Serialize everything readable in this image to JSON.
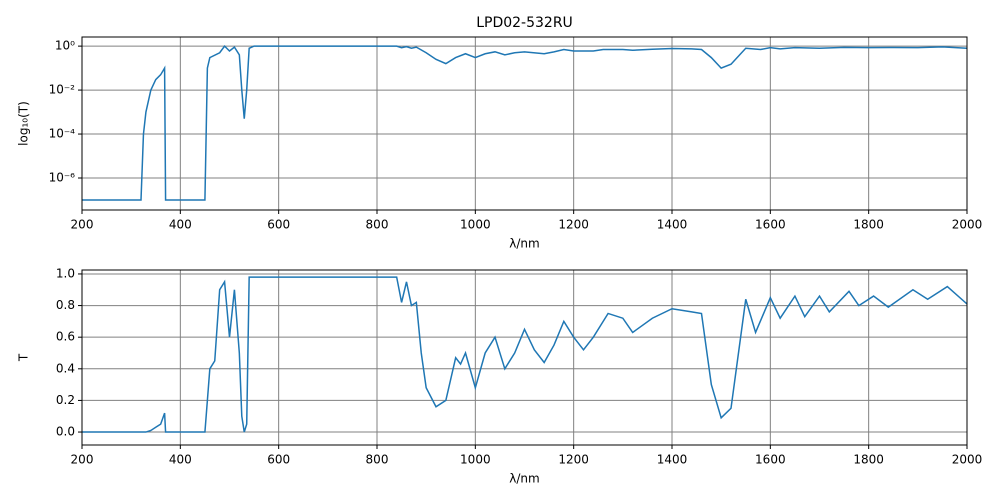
{
  "chart_data": [
    {
      "type": "line",
      "title": "LPD02-532RU",
      "xlabel": "λ/nm",
      "ylabel": "log₁₀(T)",
      "log_y": true,
      "grid": true,
      "xlim": [
        200,
        2000
      ],
      "xticks": [
        200,
        400,
        600,
        800,
        1000,
        1200,
        1400,
        1600,
        1800,
        2000
      ],
      "ylim": [
        3.5e-08,
        2.6
      ],
      "yticks": [
        {
          "value": 1e-06,
          "label": "10⁻⁶"
        },
        {
          "value": 0.0001,
          "label": "10⁻⁴"
        },
        {
          "value": 0.01,
          "label": "10⁻²"
        },
        {
          "value": 1,
          "label": "10⁰"
        }
      ],
      "series": [
        {
          "color": "#1f77b4",
          "x": [
            200,
            320,
            325,
            330,
            340,
            350,
            360,
            368,
            370,
            440,
            450,
            455,
            460,
            480,
            490,
            500,
            510,
            520,
            525,
            530,
            535,
            540,
            550,
            600,
            700,
            800,
            840,
            850,
            860,
            870,
            880,
            900,
            920,
            940,
            960,
            980,
            1000,
            1020,
            1040,
            1060,
            1080,
            1100,
            1140,
            1160,
            1180,
            1200,
            1240,
            1260,
            1300,
            1320,
            1360,
            1400,
            1440,
            1460,
            1480,
            1500,
            1520,
            1550,
            1580,
            1600,
            1620,
            1650,
            1700,
            1750,
            1800,
            1850,
            1900,
            1950,
            2000
          ],
          "values": [
            1e-07,
            1e-07,
            0.0001,
            0.001,
            0.01,
            0.03,
            0.05,
            0.1,
            1e-07,
            1e-07,
            1e-07,
            0.1,
            0.3,
            0.5,
            1,
            0.6,
            0.9,
            0.4,
            0.01,
            0.0005,
            0.01,
            0.8,
            1,
            1,
            1,
            1,
            1,
            0.85,
            0.95,
            0.8,
            0.9,
            0.5,
            0.25,
            0.16,
            0.3,
            0.45,
            0.3,
            0.45,
            0.55,
            0.4,
            0.5,
            0.55,
            0.45,
            0.55,
            0.7,
            0.6,
            0.6,
            0.7,
            0.7,
            0.65,
            0.72,
            0.78,
            0.75,
            0.7,
            0.3,
            0.1,
            0.15,
            0.8,
            0.7,
            0.85,
            0.75,
            0.85,
            0.8,
            0.88,
            0.85,
            0.87,
            0.85,
            0.92,
            0.8
          ]
        }
      ]
    },
    {
      "type": "line",
      "xlabel": "λ/nm",
      "ylabel": "T",
      "log_y": false,
      "grid": true,
      "xlim": [
        200,
        2000
      ],
      "xticks": [
        200,
        400,
        600,
        800,
        1000,
        1200,
        1400,
        1600,
        1800,
        2000
      ],
      "ylim": [
        -0.082,
        1.025
      ],
      "yticks": [
        {
          "value": 0,
          "label": "0.0"
        },
        0.2,
        0.4,
        0.6,
        0.8,
        {
          "value": 1,
          "label": "1.0"
        }
      ],
      "series": [
        {
          "color": "#1f77b4",
          "x": [
            200,
            330,
            340,
            350,
            360,
            368,
            370,
            450,
            455,
            460,
            470,
            480,
            490,
            500,
            510,
            520,
            525,
            530,
            535,
            540,
            600,
            700,
            800,
            840,
            850,
            860,
            870,
            880,
            890,
            900,
            920,
            940,
            960,
            970,
            980,
            1000,
            1020,
            1040,
            1060,
            1080,
            1100,
            1120,
            1140,
            1160,
            1180,
            1200,
            1220,
            1240,
            1270,
            1300,
            1320,
            1360,
            1400,
            1440,
            1460,
            1480,
            1500,
            1520,
            1550,
            1570,
            1600,
            1620,
            1650,
            1670,
            1700,
            1720,
            1760,
            1780,
            1810,
            1840,
            1890,
            1920,
            1960,
            2000
          ],
          "values": [
            0,
            0,
            0.01,
            0.03,
            0.05,
            0.12,
            0,
            0,
            0.2,
            0.4,
            0.45,
            0.9,
            0.95,
            0.6,
            0.9,
            0.5,
            0.1,
            0,
            0.05,
            0.98,
            0.98,
            0.98,
            0.98,
            0.98,
            0.82,
            0.95,
            0.8,
            0.82,
            0.5,
            0.28,
            0.16,
            0.2,
            0.47,
            0.43,
            0.5,
            0.28,
            0.5,
            0.6,
            0.4,
            0.5,
            0.65,
            0.52,
            0.44,
            0.55,
            0.7,
            0.6,
            0.52,
            0.6,
            0.75,
            0.72,
            0.63,
            0.72,
            0.78,
            0.76,
            0.75,
            0.3,
            0.09,
            0.15,
            0.84,
            0.63,
            0.85,
            0.72,
            0.86,
            0.73,
            0.86,
            0.76,
            0.89,
            0.8,
            0.86,
            0.79,
            0.9,
            0.84,
            0.92,
            0.81
          ]
        }
      ]
    }
  ]
}
